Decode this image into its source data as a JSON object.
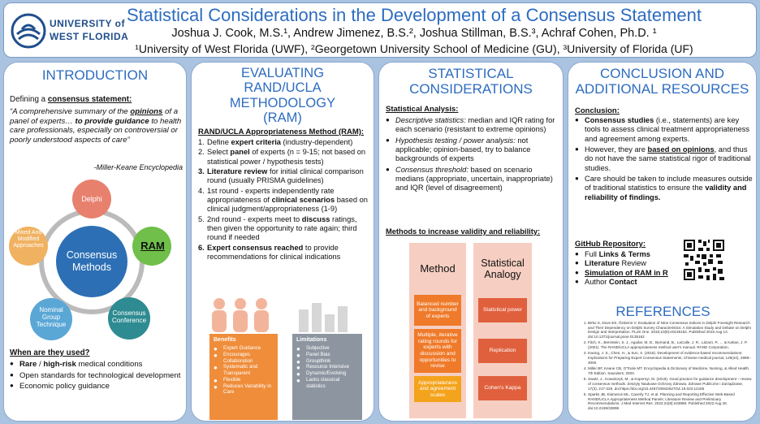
{
  "header": {
    "logo_line1": "UNIVERSITY of",
    "logo_line2": "WEST FLORIDA",
    "title": "Statistical Considerations in the Development of a Consensus Statement",
    "authors": "Joshua J. Cook, M.S.¹, Andrew Jimenez, B.S.², Joshua Stillman, B.S.³, Achraf Cohen, Ph.D. ¹",
    "affiliations": "¹University of West Florida (UWF), ²Georgetown University School of Medicine (GU), ³University of Florida (UF)"
  },
  "intro": {
    "title": "INTRODUCTION",
    "defining_prefix": "Defining a ",
    "defining_term": "consensus statement:",
    "quote_1": "“A comprehensive summary of the ",
    "quote_opinions": "opinions",
    "quote_2": " of a panel of experts… ",
    "quote_guidance": "to provide guidance",
    "quote_3": " to health care professionals, especially on controversial or poorly understood aspects of care”",
    "quote_source": "-Miller-Keane Encyclopedia",
    "cycle": {
      "center": "Consensus Methods",
      "delphi": "Delphi",
      "ram": "RAM",
      "conference": "Consensus Conference",
      "nominal": "Nominal Group Technique",
      "mixed": "Mixed And Modified Approaches"
    },
    "used_title": "When are they used?",
    "used_items": [
      {
        "bold": "Rare",
        "sep": " / ",
        "bold2": "high-risk",
        "rest": " medical conditions"
      },
      {
        "bold": "",
        "sep": "",
        "bold2": "",
        "rest": "Open standards for technological development"
      },
      {
        "bold": "",
        "sep": "",
        "bold2": "",
        "rest": "Economic policy guidance"
      }
    ]
  },
  "ram": {
    "title": "EVALUATING RAND/UCLA METHODOLOGY (RAM)",
    "subtitle": "RAND/UCLA Appropriateness Method (RAM):",
    "steps": [
      {
        "n": "1.",
        "a": "Define ",
        "b": "expert criteria",
        "c": " (industry-dependent)"
      },
      {
        "n": "2.",
        "a": "Select ",
        "b": "panel",
        "c": " of experts (n = 9-15; not based on statistical power / hypothesis tests)"
      },
      {
        "n": "3.",
        "a": "",
        "b": "Literature review",
        "c": " for initial clinical comparison round (usually PRISMA guidelines)"
      },
      {
        "n": "4.",
        "a": "1st round - experts independently rate appropriateness of ",
        "b": "clinical scenarios",
        "c": " based on clinical judgment/appropriateness (1-9)"
      },
      {
        "n": "5.",
        "a": "2nd round - experts meet to ",
        "b": "discuss",
        "c": " ratings, then given the opportunity to rate again; third round if needed"
      },
      {
        "n": "6.",
        "a": "",
        "b": "Expert consensus reached",
        "c": " to provide recommendations for clinical indications"
      }
    ],
    "benefits_title": "Benefits",
    "benefits": [
      "Expert Guidance",
      "Encourages Collaboration",
      "Systematic and Transparent",
      "Flexible",
      "Reduces Variability in Care"
    ],
    "limitations_title": "Limitations",
    "limitations": [
      "Subjective",
      "Panel Bias",
      "Groupthink",
      "Resource Intensive",
      "Dynamic/Evolving",
      "Lacks classical statistics"
    ]
  },
  "stats": {
    "title": "STATISTICAL CONSIDERATIONS",
    "analysis_title": "Statistical Analysis:",
    "items": [
      {
        "label": "Descriptive statistics:",
        "rest": " median and IQR rating for each scenario (resistant to extreme opinions)"
      },
      {
        "label": "Hypothesis testing / power analysis:",
        "rest": " not applicable; opinion-based, try to balance backgrounds of experts"
      },
      {
        "label": "Consensus threshold:",
        "rest": " based on scenario medians (appropriate, uncertain, inappropriate) and IQR (level of disagreement)"
      }
    ],
    "methods_title": "Methods to increase validity and reliability:",
    "method_col": "Method",
    "analogy_col": "Statistical Analogy",
    "method_boxes": [
      "Balanced number and background of experts",
      "Multiple, iterative rating rounds for experts with discussion and opportunities to revise",
      "Appropriateness and agreement scales"
    ],
    "analogy_boxes": [
      "Statistical power",
      "Replication",
      "Cohen's Kappa"
    ]
  },
  "conclusion": {
    "title": "CONCLUSION AND ADDITIONAL RESOURCES",
    "conclusion_title": "Conclusion:",
    "items": [
      {
        "b1": "Consensus studies",
        "t1": " (i.e., statements) are key tools to assess clinical treatment appropriateness and agreement among experts.",
        "b2": "",
        "t2": ""
      },
      {
        "b1": "",
        "t1": "However, they are ",
        "b2": "based on opinions",
        "t2": ", and thus do not have the same statistical rigor of traditional studies."
      },
      {
        "b1": "",
        "t1": "Care should be taken to include measures outside of traditional statistics to ensure the ",
        "b2": "validity and reliability of findings.",
        "t2": ""
      }
    ],
    "github_title": "GitHub Repository:",
    "github_items": [
      {
        "b": "Links & Terms",
        "pre": "Full ",
        "post": ""
      },
      {
        "b": "Literature",
        "pre": "",
        "post": " Review"
      },
      {
        "b": "Simulation of RAM in R",
        "pre": "",
        "post": ""
      },
      {
        "b": "Contact",
        "pre": "Author ",
        "post": ""
      }
    ],
    "refs_title": "REFERENCES",
    "refs": [
      "Birko S, Dove ES, Özdemir V. Evaluation of Nine Consensus Indices in Delphi Foresight Research and Their Dependency on Delphi Survey Characteristics: A Simulation Study and Debate on Delphi Design and Interpretation. PLoS One. 2015;10(8):e0135162. Published 2015 Aug 13. doi:10.1371/journal.pone.0135162",
      "Fitch, K., Bernstein, S. J., Aguilar, M. D., Burnand, B., LaCalle, J. R., Lázaro, P., ... & Kahan, J. P. (2001). The RAND/UCLA appropriateness method user's manual. RAND Corporation.",
      "Kwong, J. S., Chen, H., & Sun, X. (2016). Development of evidence-based recommendations: Implications for Preparing Expert Consensus Statements. Chinese medical journal, 129(24), 2998–3000.",
      "Miller BF, Keane CB, O'Toole MT. Encyclopedia & Dictionary of Medicine, Nursing, & Allied Health. 7th Edition. Saunders; 2003.",
      "Swatz, J., Kowalczyk, M., & Kopernyi, M. (2019). Good practice for guidance development – review of consensus methods. Zeszyty Naukowe Ochrony Zdrowia. Zdrowie Publiczne i Zarządzanie, 17(3), 217-229. doi:https://doi.org/10.4467/20842627OZ.19.023.12185",
      "Sparks JB, Klamerus ML, Caverly TJ, et al. Planning and Reporting Effective Web-Based RAND/UCLA Appropriateness Method Panels: Literature Review and Preliminary Recommendations. J Med Internet Res. 2022;24(8):e33898. Published 2022 Aug 26. doi:10.2196/33898"
    ]
  },
  "colors": {
    "title_blue": "#2d6cc0",
    "delphi": "#e8806e",
    "ram": "#6fbf4a",
    "conference": "#2e8b92",
    "nominal": "#5aa7d6",
    "mixed": "#f0b260",
    "center": "#2c6fb5",
    "benefits": "#ef8d3a",
    "limitations": "#8d96a0",
    "method_bg": "#f6cfc2",
    "method_box": "#ef7a2a",
    "analogy_box": "#e0603d"
  }
}
